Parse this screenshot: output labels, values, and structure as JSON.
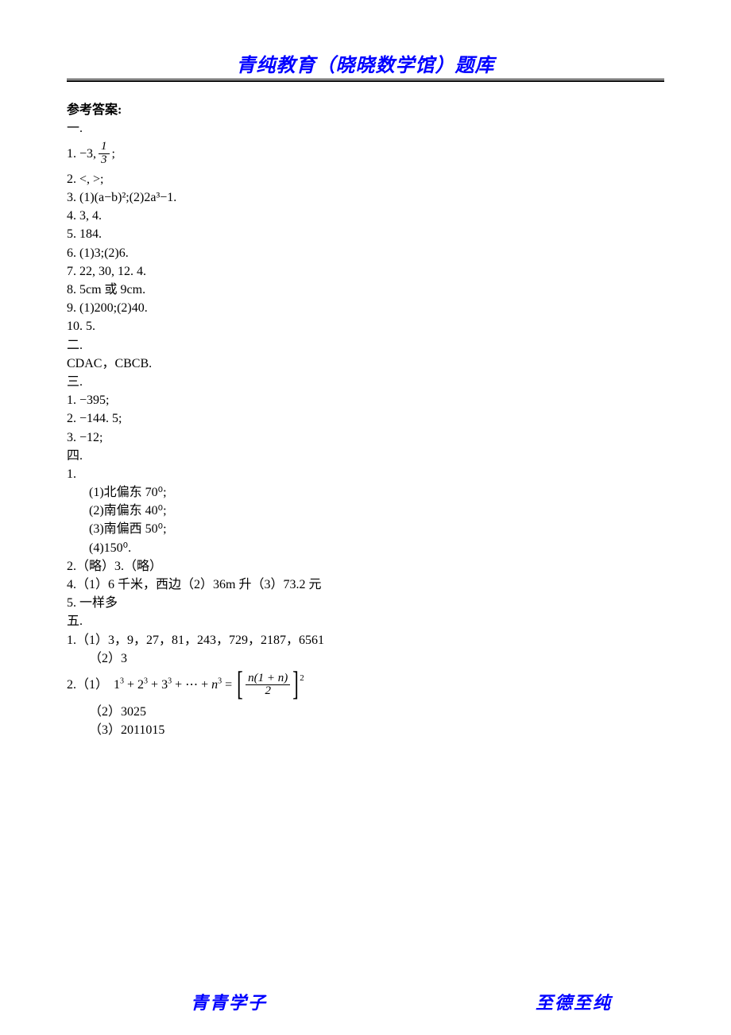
{
  "colors": {
    "brand_text": "#0000ff",
    "body_text": "#000000",
    "rule": "#000000",
    "background": "#ffffff"
  },
  "typography": {
    "header_font": "KaiTi",
    "body_font": "SimSun",
    "math_font": "Times New Roman",
    "header_fontsize": 24,
    "body_fontsize": 16,
    "footer_fontsize": 22
  },
  "header": {
    "title": "青纯教育（晓晓数学馆）题库"
  },
  "answers": {
    "title": "参考答案:",
    "s1_label": "一.",
    "q1_1_prefix": "1.  −3, ",
    "q1_1_frac_num": "1",
    "q1_1_frac_den": "3",
    "q1_1_suffix": " ;",
    "q1_2": "2.  <, >;",
    "q1_3": "3.  (1)(a−b)²;(2)2a³−1.",
    "q1_4": "4.  3, 4.",
    "q1_5": "5.  184.",
    "q1_6": "6.  (1)3;(2)6.",
    "q1_7": "7.  22, 30, 12.  4.",
    "q1_8": "8.  5cm 或 9cm.",
    "q1_9": "9.  (1)200;(2)40.",
    "q1_10": "10.  5.",
    "s2_label": "二.",
    "q2_ans": "CDAC，CBCB.",
    "s3_label": "三.",
    "q3_1": "1.  −395;",
    "q3_2": "2.  −144.  5;",
    "q3_3": "3.  −12;",
    "s4_label": "四.",
    "q4_1_label": "1.",
    "q4_1_1": "(1)北偏东 70⁰;",
    "q4_1_2": "(2)南偏东 40⁰;",
    "q4_1_3": "(3)南偏西 50⁰;",
    "q4_1_4": "(4)150⁰.",
    "q4_2_3": "2.（略）3.（略）",
    "q4_4": "4.（1）6 千米，西边（2）36m 升（3）73.2 元",
    "q4_5": "5.  一样多",
    "s5_label": "五.",
    "q5_1_1": "1.（1）3，9，27，81，243，729，2187，6561",
    "q5_1_2": "（2）3",
    "q5_2_prefix": "2.（1）",
    "q5_2_formula": {
      "lhs_terms": "1³ + 2³ + 3³ + ⋯ + n³ = ",
      "frac_num": "n(1 + n)",
      "frac_den": "2",
      "exponent": "2"
    },
    "q5_2_2": "（2）3025",
    "q5_2_3": "（3）2011015"
  },
  "footer": {
    "left": "青青学子",
    "right": "至德至纯"
  }
}
